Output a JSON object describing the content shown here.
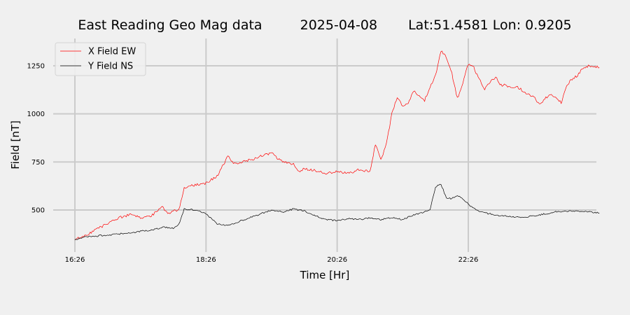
{
  "chart_data": {
    "type": "line",
    "title": {
      "station": "East Reading Geo Mag data",
      "date": "2025-04-08",
      "location": "Lat:51.4581  Lon: 0.9205"
    },
    "xlabel": "Time  [Hr]",
    "ylabel": "Field  [nT]",
    "x_ticks": [
      "16:26",
      "18:26",
      "20:26",
      "22:26"
    ],
    "y_ticks": [
      500,
      750,
      1000,
      1250
    ],
    "xlim": [
      "16:26",
      "24:26"
    ],
    "ylim": [
      325,
      1380
    ],
    "grid": true,
    "legend_position": "top-left",
    "series": [
      {
        "name": "X Field EW",
        "color": "#ff0000",
        "x": [
          "16:26",
          "16:36",
          "16:46",
          "16:56",
          "17:06",
          "17:16",
          "17:26",
          "17:36",
          "17:46",
          "17:51",
          "17:56",
          "18:01",
          "18:06",
          "18:10",
          "18:16",
          "18:26",
          "18:36",
          "18:46",
          "18:51",
          "18:56",
          "19:01",
          "19:06",
          "19:16",
          "19:26",
          "19:36",
          "19:46",
          "19:50",
          "19:56",
          "20:06",
          "20:16",
          "20:26",
          "20:36",
          "20:46",
          "20:56",
          "21:01",
          "21:06",
          "21:11",
          "21:16",
          "21:21",
          "21:26",
          "21:31",
          "21:36",
          "21:46",
          "21:56",
          "22:01",
          "22:06",
          "22:11",
          "22:16",
          "22:21",
          "22:26",
          "22:31",
          "22:36",
          "22:41",
          "22:46",
          "22:51",
          "22:56",
          "23:01",
          "23:06",
          "23:11",
          "23:16",
          "23:21",
          "23:26",
          "23:31",
          "23:36",
          "23:41",
          "23:46",
          "23:51",
          "23:56",
          "24:01",
          "24:06",
          "24:11",
          "24:16",
          "24:21",
          "24:26"
        ],
        "values": [
          345,
          370,
          400,
          430,
          460,
          475,
          460,
          470,
          520,
          480,
          495,
          500,
          615,
          625,
          630,
          640,
          675,
          780,
          740,
          745,
          755,
          760,
          780,
          795,
          750,
          740,
          700,
          715,
          705,
          690,
          700,
          690,
          710,
          700,
          840,
          760,
          840,
          1000,
          1090,
          1040,
          1050,
          1120,
          1070,
          1200,
          1330,
          1290,
          1210,
          1080,
          1160,
          1260,
          1240,
          1180,
          1130,
          1170,
          1190,
          1150,
          1150,
          1130,
          1140,
          1120,
          1100,
          1090,
          1050,
          1080,
          1100,
          1080,
          1060,
          1150,
          1180,
          1200,
          1240,
          1250,
          1245,
          1245
        ]
      },
      {
        "name": "Y Field NS",
        "color": "#000000",
        "x": [
          "16:26",
          "16:36",
          "16:46",
          "16:56",
          "17:06",
          "17:16",
          "17:26",
          "17:36",
          "17:46",
          "17:56",
          "18:01",
          "18:06",
          "18:16",
          "18:26",
          "18:36",
          "18:46",
          "18:56",
          "19:06",
          "19:16",
          "19:26",
          "19:36",
          "19:46",
          "19:56",
          "20:06",
          "20:16",
          "20:26",
          "20:36",
          "20:46",
          "20:56",
          "21:06",
          "21:16",
          "21:26",
          "21:36",
          "21:41",
          "21:46",
          "21:51",
          "21:56",
          "22:01",
          "22:06",
          "22:11",
          "22:16",
          "22:21",
          "22:26",
          "22:36",
          "22:46",
          "22:56",
          "23:06",
          "23:16",
          "23:26",
          "23:36",
          "23:46",
          "23:56",
          "24:06",
          "24:16",
          "24:26"
        ],
        "values": [
          345,
          360,
          365,
          370,
          375,
          380,
          390,
          395,
          410,
          405,
          425,
          505,
          500,
          480,
          430,
          420,
          440,
          460,
          480,
          500,
          490,
          505,
          495,
          470,
          450,
          445,
          455,
          450,
          460,
          450,
          460,
          450,
          475,
          480,
          490,
          505,
          620,
          635,
          560,
          560,
          575,
          560,
          530,
          490,
          480,
          470,
          465,
          460,
          470,
          480,
          490,
          495,
          495,
          490,
          485
        ]
      }
    ]
  }
}
